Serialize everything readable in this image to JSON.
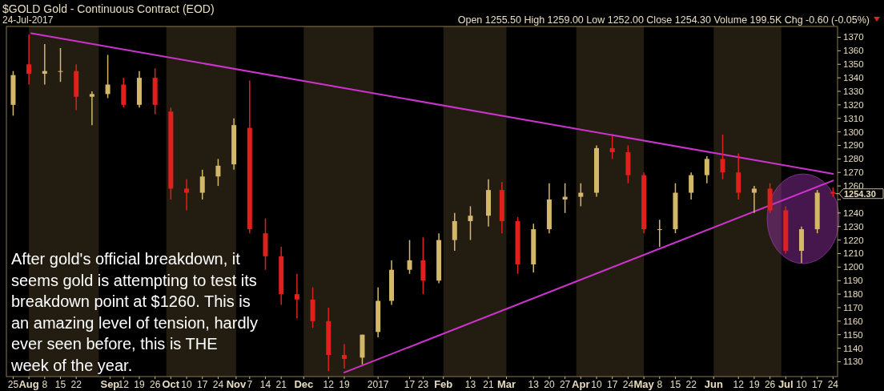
{
  "chart_data": {
    "type": "candlestick",
    "title": "$GOLD Gold - Continuous Contract (EOD)",
    "subtitle": "24-Jul-2017",
    "x": [
      "2016-07-25",
      "2016-08-01",
      "2016-08-08",
      "2016-08-15",
      "2016-08-22",
      "2016-08-29",
      "2016-09-05",
      "2016-09-12",
      "2016-09-19",
      "2016-09-26",
      "2016-10-03",
      "2016-10-10",
      "2016-10-17",
      "2016-10-24",
      "2016-10-31",
      "2016-11-07",
      "2016-11-14",
      "2016-11-21",
      "2016-11-28",
      "2016-12-05",
      "2016-12-12",
      "2016-12-19",
      "2016-12-27",
      "2017-01-03",
      "2017-01-09",
      "2017-01-17",
      "2017-01-23",
      "2017-01-30",
      "2017-02-06",
      "2017-02-13",
      "2017-02-21",
      "2017-02-27",
      "2017-03-06",
      "2017-03-13",
      "2017-03-20",
      "2017-03-27",
      "2017-04-03",
      "2017-04-10",
      "2017-04-17",
      "2017-04-24",
      "2017-05-01",
      "2017-05-08",
      "2017-05-15",
      "2017-05-22",
      "2017-05-29",
      "2017-06-05",
      "2017-06-12",
      "2017-06-19",
      "2017-06-26",
      "2017-07-03",
      "2017-07-10",
      "2017-07-17",
      "2017-07-24"
    ],
    "ohlc": [
      [
        1320,
        1345,
        1312,
        1342
      ],
      [
        1350,
        1372,
        1335,
        1343
      ],
      [
        1343,
        1365,
        1335,
        1345
      ],
      [
        1345,
        1362,
        1337,
        1345
      ],
      [
        1345,
        1350,
        1316,
        1326
      ],
      [
        1326,
        1330,
        1305,
        1328
      ],
      [
        1328,
        1357,
        1325,
        1335
      ],
      [
        1335,
        1340,
        1318,
        1320
      ],
      [
        1320,
        1345,
        1318,
        1340
      ],
      [
        1340,
        1347,
        1313,
        1320
      ],
      [
        1315,
        1318,
        1250,
        1258
      ],
      [
        1258,
        1265,
        1242,
        1255
      ],
      [
        1255,
        1272,
        1250,
        1267
      ],
      [
        1267,
        1280,
        1260,
        1275
      ],
      [
        1276,
        1310,
        1272,
        1305
      ],
      [
        1303,
        1338,
        1225,
        1228
      ],
      [
        1225,
        1236,
        1198,
        1208
      ],
      [
        1208,
        1215,
        1172,
        1180
      ],
      [
        1180,
        1195,
        1162,
        1176
      ],
      [
        1176,
        1185,
        1155,
        1160
      ],
      [
        1160,
        1170,
        1123,
        1135
      ],
      [
        1135,
        1143,
        1125,
        1132
      ],
      [
        1133,
        1150,
        1128,
        1150
      ],
      [
        1152,
        1185,
        1148,
        1175
      ],
      [
        1175,
        1205,
        1172,
        1198
      ],
      [
        1198,
        1220,
        1195,
        1205
      ],
      [
        1205,
        1222,
        1180,
        1190
      ],
      [
        1190,
        1225,
        1188,
        1220
      ],
      [
        1220,
        1240,
        1212,
        1234
      ],
      [
        1234,
        1245,
        1220,
        1238
      ],
      [
        1238,
        1265,
        1230,
        1257
      ],
      [
        1257,
        1263,
        1225,
        1234
      ],
      [
        1234,
        1237,
        1195,
        1202
      ],
      [
        1202,
        1232,
        1196,
        1228
      ],
      [
        1228,
        1262,
        1225,
        1250
      ],
      [
        1250,
        1262,
        1240,
        1252
      ],
      [
        1252,
        1262,
        1245,
        1255
      ],
      [
        1255,
        1290,
        1252,
        1288
      ],
      [
        1288,
        1297,
        1280,
        1285
      ],
      [
        1285,
        1290,
        1262,
        1268
      ],
      [
        1268,
        1270,
        1225,
        1228
      ],
      [
        1228,
        1235,
        1215,
        1228
      ],
      [
        1228,
        1262,
        1225,
        1255
      ],
      [
        1255,
        1270,
        1250,
        1268
      ],
      [
        1268,
        1282,
        1262,
        1280
      ],
      [
        1280,
        1298,
        1265,
        1270
      ],
      [
        1270,
        1284,
        1250,
        1255
      ],
      [
        1255,
        1260,
        1240,
        1258
      ],
      [
        1258,
        1262,
        1240,
        1242
      ],
      [
        1242,
        1245,
        1210,
        1212
      ],
      [
        1212,
        1230,
        1203,
        1228
      ],
      [
        1228,
        1257,
        1225,
        1255
      ],
      [
        1255.5,
        1259,
        1252,
        1254.3
      ]
    ],
    "colors": [
      "#d4b86a",
      "#e0201c",
      "#d4b86a",
      "#d4b86a",
      "#e0201c",
      "#d4b86a",
      "#d4b86a",
      "#e0201c",
      "#d4b86a",
      "#e0201c",
      "#e0201c",
      "#e0201c",
      "#d4b86a",
      "#d4b86a",
      "#d4b86a",
      "#e0201c",
      "#e0201c",
      "#e0201c",
      "#e0201c",
      "#e0201c",
      "#e0201c",
      "#e0201c",
      "#d4b86a",
      "#d4b86a",
      "#d4b86a",
      "#d4b86a",
      "#e0201c",
      "#d4b86a",
      "#d4b86a",
      "#d4b86a",
      "#d4b86a",
      "#e0201c",
      "#e0201c",
      "#d4b86a",
      "#d4b86a",
      "#d4b86a",
      "#d4b86a",
      "#d4b86a",
      "#e0201c",
      "#e0201c",
      "#e0201c",
      "#d4b86a",
      "#d4b86a",
      "#d4b86a",
      "#d4b86a",
      "#e0201c",
      "#e0201c",
      "#d4b86a",
      "#e0201c",
      "#e0201c",
      "#d4b86a",
      "#d4b86a",
      "#e0201c"
    ],
    "series": [
      {
        "type": "line",
        "color": "#cc33cc",
        "x": [
          "2016-08-02",
          "2017-07-24"
        ],
        "values": [
          1373,
          1269
        ]
      },
      {
        "type": "line",
        "color": "#cc33cc",
        "x": [
          "2016-12-19",
          "2017-07-24"
        ],
        "values": [
          1122,
          1264
        ]
      }
    ],
    "xlim": [
      "2016-07-22",
      "2017-07-26"
    ],
    "ylim": [
      1119,
      1378
    ],
    "xticks": [
      {
        "value": "2016-07-25",
        "label": "25"
      },
      {
        "value": "2016-08-01",
        "label": "Aug"
      },
      {
        "value": "2016-08-08",
        "label": "8"
      },
      {
        "value": "2016-08-15",
        "label": "15"
      },
      {
        "value": "2016-08-22",
        "label": "22"
      },
      {
        "value": "2016-09-06",
        "label": "Sep"
      },
      {
        "value": "2016-09-12",
        "label": "12"
      },
      {
        "value": "2016-09-19",
        "label": "19"
      },
      {
        "value": "2016-09-26",
        "label": "26"
      },
      {
        "value": "2016-10-03",
        "label": "Oct"
      },
      {
        "value": "2016-10-10",
        "label": "10"
      },
      {
        "value": "2016-10-17",
        "label": "17"
      },
      {
        "value": "2016-10-24",
        "label": "24"
      },
      {
        "value": "2016-11-01",
        "label": "Nov"
      },
      {
        "value": "2016-11-07",
        "label": "7"
      },
      {
        "value": "2016-11-14",
        "label": "14"
      },
      {
        "value": "2016-11-21",
        "label": "21"
      },
      {
        "value": "2016-12-01",
        "label": "Dec"
      },
      {
        "value": "2016-12-12",
        "label": "12"
      },
      {
        "value": "2016-12-19",
        "label": "19"
      },
      {
        "value": "2017-01-03",
        "label": "2017"
      },
      {
        "value": "2017-01-17",
        "label": "17"
      },
      {
        "value": "2017-01-23",
        "label": "23"
      },
      {
        "value": "2017-02-01",
        "label": "Feb"
      },
      {
        "value": "2017-02-13",
        "label": "13"
      },
      {
        "value": "2017-02-21",
        "label": "21"
      },
      {
        "value": "2017-03-01",
        "label": "Mar"
      },
      {
        "value": "2017-03-13",
        "label": "13"
      },
      {
        "value": "2017-03-20",
        "label": "20"
      },
      {
        "value": "2017-03-27",
        "label": "27"
      },
      {
        "value": "2017-04-03",
        "label": "Apr"
      },
      {
        "value": "2017-04-10",
        "label": "10"
      },
      {
        "value": "2017-04-17",
        "label": "17"
      },
      {
        "value": "2017-04-24",
        "label": "24"
      },
      {
        "value": "2017-05-01",
        "label": "May"
      },
      {
        "value": "2017-05-08",
        "label": "8"
      },
      {
        "value": "2017-05-15",
        "label": "15"
      },
      {
        "value": "2017-05-22",
        "label": "22"
      },
      {
        "value": "2017-06-01",
        "label": "Jun"
      },
      {
        "value": "2017-06-12",
        "label": "12"
      },
      {
        "value": "2017-06-19",
        "label": "19"
      },
      {
        "value": "2017-06-26",
        "label": "26"
      },
      {
        "value": "2017-07-03",
        "label": "Jul"
      },
      {
        "value": "2017-07-10",
        "label": "10"
      },
      {
        "value": "2017-07-17",
        "label": "17"
      },
      {
        "value": "2017-07-24",
        "label": "24"
      }
    ],
    "yticks": [
      1130,
      1140,
      1150,
      1160,
      1170,
      1180,
      1190,
      1200,
      1210,
      1220,
      1230,
      1240,
      {
        "value": 1250,
        "label": null
      },
      1260,
      1270,
      1280,
      1290,
      1300,
      1310,
      1320,
      1330,
      1340,
      1350,
      1360,
      1370
    ],
    "bands": [
      {
        "axis": "x",
        "from": "2016-08-01",
        "to": "2016-09-01",
        "color": "#231c10"
      },
      {
        "axis": "x",
        "from": "2016-10-01",
        "to": "2016-11-01",
        "color": "#231c10"
      },
      {
        "axis": "x",
        "from": "2016-12-01",
        "to": "2017-01-01",
        "color": "#231c10"
      },
      {
        "axis": "x",
        "from": "2017-02-01",
        "to": "2017-03-01",
        "color": "#231c10"
      },
      {
        "axis": "x",
        "from": "2017-04-01",
        "to": "2017-05-01",
        "color": "#231c10"
      },
      {
        "axis": "x",
        "from": "2017-06-01",
        "to": "2017-07-01",
        "color": "#231c10"
      }
    ],
    "annotations": [
      "Open 1255.50 High 1259.00 Low 1252.00 Close 1254.30 Volume 199.5K Chg -0.60 (-0.05%)",
      {
        "text": "1254.30",
        "x": "2017-07-24",
        "y": 1254.3
      },
      "After gold's official breakdown, it\nseems gold is attempting to test its\nbreakdown point at $1260. This is\nan amazing level of tension, hardly\never seen before, this is THE\nweek of the year."
    ],
    "grid": false
  }
}
